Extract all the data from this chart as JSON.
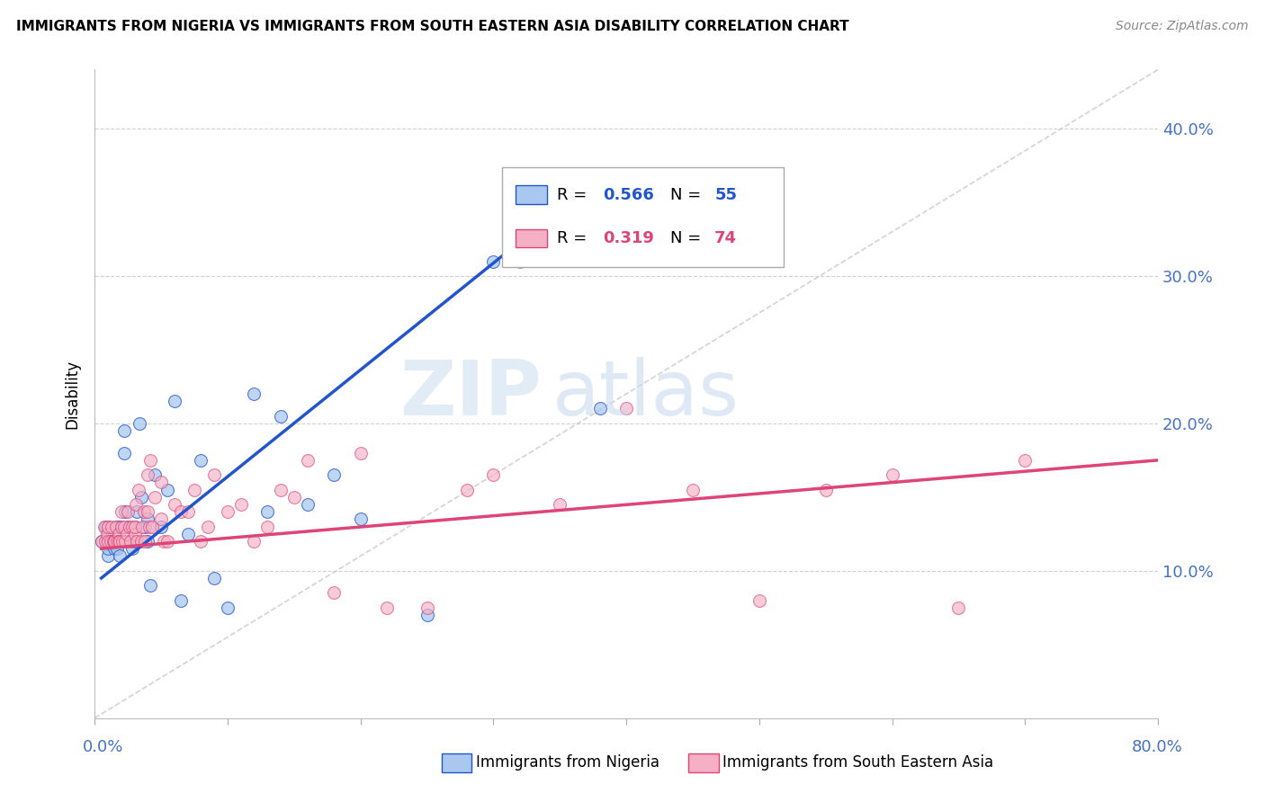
{
  "title": "IMMIGRANTS FROM NIGERIA VS IMMIGRANTS FROM SOUTH EASTERN ASIA DISABILITY CORRELATION CHART",
  "source": "Source: ZipAtlas.com",
  "ylabel": "Disability",
  "yticks": [
    0.1,
    0.2,
    0.3,
    0.4
  ],
  "ytick_labels": [
    "10.0%",
    "20.0%",
    "30.0%",
    "40.0%"
  ],
  "xlim": [
    0.0,
    0.8
  ],
  "ylim": [
    0.0,
    0.44
  ],
  "nigeria_R": 0.566,
  "nigeria_N": 55,
  "sea_R": 0.319,
  "sea_N": 74,
  "nigeria_color": "#a8c8f0",
  "nigeria_line_color": "#2255cc",
  "sea_color": "#f5b0c5",
  "sea_line_color": "#dd4477",
  "diagonal_color": "#c8c8c8",
  "watermark_zip": "ZIP",
  "watermark_atlas": "atlas",
  "nigeria_scatter_x": [
    0.005,
    0.008,
    0.009,
    0.01,
    0.01,
    0.01,
    0.01,
    0.01,
    0.012,
    0.013,
    0.014,
    0.015,
    0.015,
    0.016,
    0.017,
    0.018,
    0.018,
    0.019,
    0.02,
    0.02,
    0.021,
    0.022,
    0.022,
    0.023,
    0.025,
    0.025,
    0.027,
    0.028,
    0.03,
    0.03,
    0.032,
    0.034,
    0.035,
    0.038,
    0.04,
    0.04,
    0.042,
    0.045,
    0.05,
    0.055,
    0.06,
    0.065,
    0.07,
    0.08,
    0.09,
    0.1,
    0.12,
    0.13,
    0.14,
    0.16,
    0.18,
    0.2,
    0.25,
    0.3,
    0.38
  ],
  "nigeria_scatter_y": [
    0.12,
    0.13,
    0.12,
    0.12,
    0.13,
    0.11,
    0.125,
    0.115,
    0.12,
    0.12,
    0.12,
    0.12,
    0.115,
    0.13,
    0.115,
    0.13,
    0.12,
    0.11,
    0.13,
    0.12,
    0.12,
    0.195,
    0.18,
    0.14,
    0.12,
    0.13,
    0.12,
    0.115,
    0.12,
    0.13,
    0.14,
    0.2,
    0.15,
    0.13,
    0.135,
    0.12,
    0.09,
    0.165,
    0.13,
    0.155,
    0.215,
    0.08,
    0.125,
    0.175,
    0.095,
    0.075,
    0.22,
    0.14,
    0.205,
    0.145,
    0.165,
    0.135,
    0.07,
    0.31,
    0.21
  ],
  "sea_scatter_x": [
    0.005,
    0.007,
    0.008,
    0.009,
    0.01,
    0.01,
    0.012,
    0.013,
    0.014,
    0.015,
    0.015,
    0.016,
    0.017,
    0.018,
    0.018,
    0.019,
    0.02,
    0.02,
    0.021,
    0.022,
    0.023,
    0.024,
    0.025,
    0.026,
    0.027,
    0.028,
    0.03,
    0.03,
    0.031,
    0.032,
    0.033,
    0.035,
    0.036,
    0.037,
    0.038,
    0.04,
    0.04,
    0.041,
    0.042,
    0.043,
    0.045,
    0.05,
    0.05,
    0.052,
    0.055,
    0.06,
    0.065,
    0.07,
    0.075,
    0.08,
    0.085,
    0.09,
    0.1,
    0.11,
    0.12,
    0.13,
    0.14,
    0.15,
    0.16,
    0.18,
    0.2,
    0.22,
    0.25,
    0.28,
    0.3,
    0.32,
    0.35,
    0.4,
    0.45,
    0.5,
    0.55,
    0.6,
    0.65,
    0.7
  ],
  "sea_scatter_y": [
    0.12,
    0.13,
    0.12,
    0.125,
    0.12,
    0.13,
    0.12,
    0.13,
    0.12,
    0.12,
    0.12,
    0.13,
    0.12,
    0.125,
    0.12,
    0.12,
    0.13,
    0.14,
    0.12,
    0.13,
    0.12,
    0.125,
    0.14,
    0.13,
    0.12,
    0.13,
    0.125,
    0.13,
    0.145,
    0.12,
    0.155,
    0.12,
    0.13,
    0.14,
    0.12,
    0.165,
    0.14,
    0.13,
    0.175,
    0.13,
    0.15,
    0.135,
    0.16,
    0.12,
    0.12,
    0.145,
    0.14,
    0.14,
    0.155,
    0.12,
    0.13,
    0.165,
    0.14,
    0.145,
    0.12,
    0.13,
    0.155,
    0.15,
    0.175,
    0.085,
    0.18,
    0.075,
    0.075,
    0.155,
    0.165,
    0.31,
    0.145,
    0.21,
    0.155,
    0.08,
    0.155,
    0.165,
    0.075,
    0.175
  ]
}
